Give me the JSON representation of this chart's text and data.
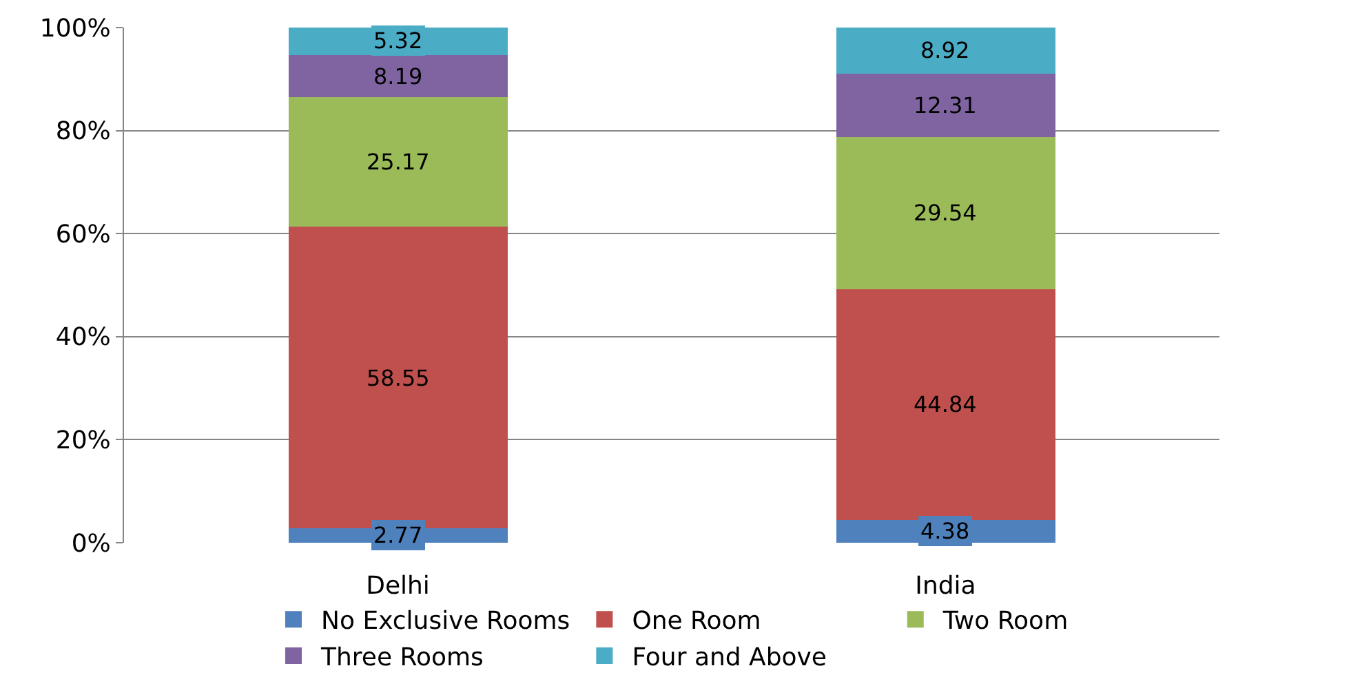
{
  "chart_data": {
    "type": "bar",
    "stacked": true,
    "categories": [
      "Delhi",
      "India"
    ],
    "series": [
      {
        "name": "No Exclusive Rooms",
        "color": "#4f81bd",
        "values": [
          2.77,
          4.38
        ]
      },
      {
        "name": "One Room",
        "color": "#c0504d",
        "values": [
          58.55,
          44.84
        ]
      },
      {
        "name": "Two Room",
        "color": "#9bbb59",
        "values": [
          25.17,
          29.54
        ]
      },
      {
        "name": "Three Rooms",
        "color": "#8064a2",
        "values": [
          8.19,
          12.31
        ]
      },
      {
        "name": "Four and Above",
        "color": "#4bacc6",
        "values": [
          5.32,
          8.92
        ]
      }
    ],
    "ylim": [
      0,
      100
    ],
    "yticks": [
      {
        "value": 0,
        "label": "0%"
      },
      {
        "value": 20,
        "label": "20%"
      },
      {
        "value": 40,
        "label": "40%"
      },
      {
        "value": 60,
        "label": "60%"
      },
      {
        "value": 80,
        "label": "80%"
      },
      {
        "value": 100,
        "label": "100%"
      }
    ],
    "grid": "y",
    "legend": "bottom",
    "data_labels": true
  }
}
